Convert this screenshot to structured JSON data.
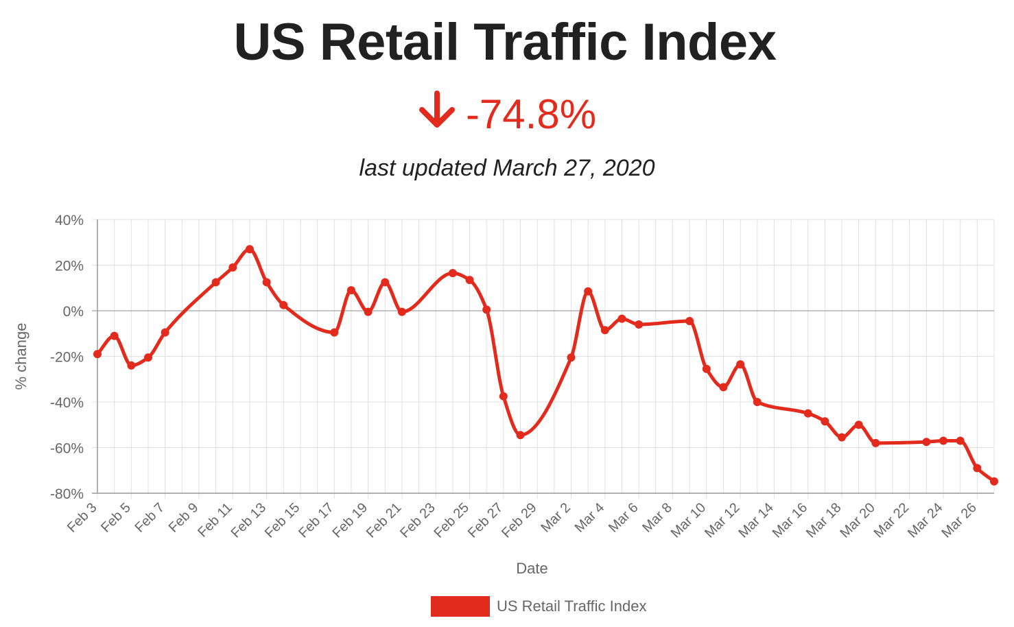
{
  "header": {
    "title": "US Retail Traffic Index",
    "change": "-74.8%",
    "updated": "last updated March 27, 2020"
  },
  "colors": {
    "accent": "#e32b1d",
    "title": "#212121",
    "axis_text": "#666666",
    "grid": "#e0e0e0"
  },
  "icons": {
    "change_arrow": "arrow-down-icon"
  },
  "chart_data": {
    "type": "line",
    "title": "US Retail Traffic Index",
    "xlabel": "Date",
    "ylabel": "% change",
    "ylim": [
      -80,
      40
    ],
    "yticks": [
      40,
      20,
      0,
      -20,
      -40,
      -60,
      -80
    ],
    "ytick_labels": [
      "40%",
      "20%",
      "0%",
      "-20%",
      "-40%",
      "-60%",
      "-80%"
    ],
    "x_range_days": [
      0,
      53
    ],
    "xticks": [
      {
        "day": 0,
        "label": "Feb 3"
      },
      {
        "day": 2,
        "label": "Feb 5"
      },
      {
        "day": 4,
        "label": "Feb 7"
      },
      {
        "day": 6,
        "label": "Feb 9"
      },
      {
        "day": 8,
        "label": "Feb 11"
      },
      {
        "day": 10,
        "label": "Feb 13"
      },
      {
        "day": 12,
        "label": "Feb 15"
      },
      {
        "day": 14,
        "label": "Feb 17"
      },
      {
        "day": 16,
        "label": "Feb 19"
      },
      {
        "day": 18,
        "label": "Feb 21"
      },
      {
        "day": 20,
        "label": "Feb 23"
      },
      {
        "day": 22,
        "label": "Feb 25"
      },
      {
        "day": 24,
        "label": "Feb 27"
      },
      {
        "day": 26,
        "label": "Feb 29"
      },
      {
        "day": 28,
        "label": "Mar 2"
      },
      {
        "day": 30,
        "label": "Mar 4"
      },
      {
        "day": 32,
        "label": "Mar 6"
      },
      {
        "day": 34,
        "label": "Mar 8"
      },
      {
        "day": 36,
        "label": "Mar 10"
      },
      {
        "day": 38,
        "label": "Mar 12"
      },
      {
        "day": 40,
        "label": "Mar 14"
      },
      {
        "day": 42,
        "label": "Mar 16"
      },
      {
        "day": 44,
        "label": "Mar 18"
      },
      {
        "day": 46,
        "label": "Mar 20"
      },
      {
        "day": 48,
        "label": "Mar 22"
      },
      {
        "day": 50,
        "label": "Mar 24"
      },
      {
        "day": 52,
        "label": "Mar 26"
      }
    ],
    "legend": {
      "position": "bottom",
      "entries": [
        "US Retail Traffic Index"
      ]
    },
    "grid": true,
    "series": [
      {
        "name": "US Retail Traffic Index",
        "points": [
          {
            "day": 0,
            "value": -19
          },
          {
            "day": 1,
            "value": -11
          },
          {
            "day": 2,
            "value": -24
          },
          {
            "day": 3,
            "value": -20.5
          },
          {
            "day": 4,
            "value": -9.5
          },
          {
            "day": 7,
            "value": 12.5
          },
          {
            "day": 8,
            "value": 19
          },
          {
            "day": 9,
            "value": 27
          },
          {
            "day": 10,
            "value": 12.5
          },
          {
            "day": 11,
            "value": 2.5
          },
          {
            "day": 14,
            "value": -9.5
          },
          {
            "day": 15,
            "value": 9
          },
          {
            "day": 16,
            "value": -0.5
          },
          {
            "day": 17,
            "value": 12.5
          },
          {
            "day": 18,
            "value": -0.5
          },
          {
            "day": 21,
            "value": 16.5
          },
          {
            "day": 22,
            "value": 13.5
          },
          {
            "day": 23,
            "value": 0.5
          },
          {
            "day": 24,
            "value": -37.5
          },
          {
            "day": 25,
            "value": -54.5
          },
          {
            "day": 28,
            "value": -20.5
          },
          {
            "day": 29,
            "value": 8.5
          },
          {
            "day": 30,
            "value": -8.5
          },
          {
            "day": 31,
            "value": -3.5
          },
          {
            "day": 32,
            "value": -6
          },
          {
            "day": 35,
            "value": -4.5
          },
          {
            "day": 36,
            "value": -25.5
          },
          {
            "day": 37,
            "value": -33.5
          },
          {
            "day": 38,
            "value": -23.5
          },
          {
            "day": 39,
            "value": -40
          },
          {
            "day": 42,
            "value": -45
          },
          {
            "day": 43,
            "value": -48.5
          },
          {
            "day": 44,
            "value": -55.5
          },
          {
            "day": 45,
            "value": -50
          },
          {
            "day": 46,
            "value": -58
          },
          {
            "day": 49,
            "value": -57.5
          },
          {
            "day": 50,
            "value": -57
          },
          {
            "day": 51,
            "value": -57
          },
          {
            "day": 52,
            "value": -69
          },
          {
            "day": 53,
            "value": -74.8
          }
        ]
      }
    ]
  }
}
